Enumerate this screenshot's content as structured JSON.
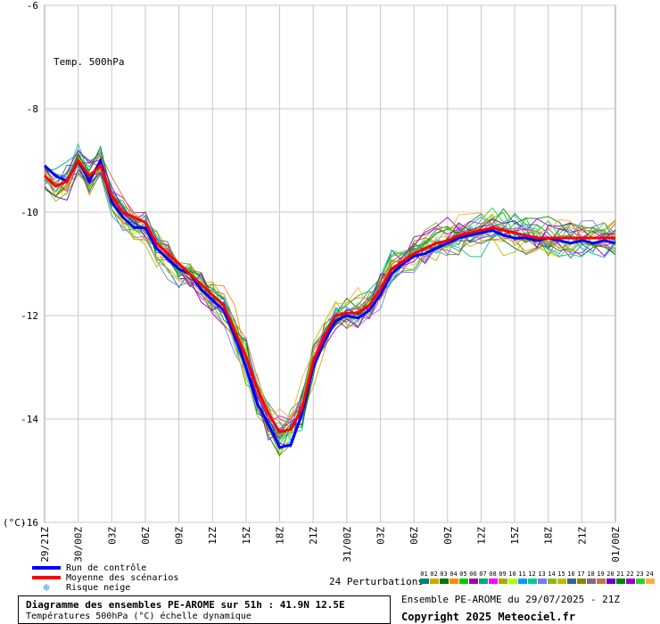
{
  "chart_data": {
    "type": "line",
    "title": "Temp. 500hPa",
    "ylabel": "(°C)",
    "ylim": [
      -16,
      -6
    ],
    "yticks": [
      -6,
      -8,
      -10,
      -12,
      -14,
      -16
    ],
    "xticks": [
      "29/21Z",
      "30/00Z",
      "03Z",
      "06Z",
      "09Z",
      "12Z",
      "15Z",
      "18Z",
      "21Z",
      "31/00Z",
      "03Z",
      "06Z",
      "09Z",
      "12Z",
      "15Z",
      "18Z",
      "21Z",
      "01/00Z"
    ],
    "x_hours": [
      0,
      51
    ],
    "grid": true,
    "series": [
      {
        "name": "Moyenne des scénarios",
        "color": "#ff0000",
        "x": [
          0,
          1,
          2,
          3,
          4,
          5,
          6,
          7,
          8,
          9,
          10,
          11,
          12,
          13,
          14,
          15,
          16,
          17,
          18,
          19,
          20,
          21,
          22,
          23,
          24,
          25,
          26,
          27,
          28,
          29,
          30,
          31,
          32,
          33,
          34,
          35,
          36,
          37,
          38,
          39,
          40,
          41,
          42,
          43,
          44,
          45,
          46,
          47,
          48,
          49,
          50,
          51
        ],
        "values": [
          -9.3,
          -9.5,
          -9.4,
          -9.0,
          -9.3,
          -9.1,
          -9.7,
          -10.0,
          -10.1,
          -10.2,
          -10.6,
          -10.8,
          -11.0,
          -11.2,
          -11.4,
          -11.6,
          -11.8,
          -12.3,
          -12.8,
          -13.4,
          -13.9,
          -14.25,
          -14.2,
          -13.8,
          -12.9,
          -12.4,
          -12.0,
          -11.95,
          -11.95,
          -11.8,
          -11.5,
          -11.1,
          -10.95,
          -10.8,
          -10.7,
          -10.6,
          -10.55,
          -10.45,
          -10.4,
          -10.35,
          -10.3,
          -10.35,
          -10.4,
          -10.45,
          -10.5,
          -10.5,
          -10.5,
          -10.5,
          -10.5,
          -10.5,
          -10.5,
          -10.5
        ]
      },
      {
        "name": "Run de contrôle",
        "color": "#0000ff",
        "x": [
          0,
          1,
          2,
          3,
          4,
          5,
          6,
          7,
          8,
          9,
          10,
          11,
          12,
          13,
          14,
          15,
          16,
          17,
          18,
          19,
          20,
          21,
          22,
          23,
          24,
          25,
          26,
          27,
          28,
          29,
          30,
          31,
          32,
          33,
          34,
          35,
          36,
          37,
          38,
          39,
          40,
          41,
          42,
          43,
          44,
          45,
          46,
          47,
          48,
          49,
          50,
          51
        ],
        "values": [
          -9.1,
          -9.3,
          -9.4,
          -9.0,
          -9.4,
          -9.0,
          -9.8,
          -10.1,
          -10.3,
          -10.3,
          -10.7,
          -10.9,
          -11.1,
          -11.2,
          -11.5,
          -11.7,
          -11.9,
          -12.4,
          -13.0,
          -13.7,
          -14.1,
          -14.55,
          -14.5,
          -13.9,
          -13.0,
          -12.5,
          -12.1,
          -12.0,
          -12.05,
          -11.9,
          -11.6,
          -11.2,
          -11.0,
          -10.85,
          -10.8,
          -10.7,
          -10.6,
          -10.5,
          -10.45,
          -10.4,
          -10.35,
          -10.45,
          -10.5,
          -10.5,
          -10.55,
          -10.5,
          -10.55,
          -10.6,
          -10.55,
          -10.6,
          -10.55,
          -10.6
        ]
      }
    ]
  },
  "legend": {
    "control_label": "Run de contrôle",
    "mean_label": "Moyenne des scénarios",
    "snow_label": "Risque neige",
    "snow_icon": "snowflake-icon"
  },
  "perturbations": {
    "label": "24 Perturbations",
    "items": [
      {
        "num": "01",
        "color": "#008080"
      },
      {
        "num": "02",
        "color": "#ccaa00"
      },
      {
        "num": "03",
        "color": "#007700"
      },
      {
        "num": "04",
        "color": "#ff8800"
      },
      {
        "num": "05",
        "color": "#00cc00"
      },
      {
        "num": "06",
        "color": "#aa00aa"
      },
      {
        "num": "07",
        "color": "#00aa77"
      },
      {
        "num": "08",
        "color": "#ff00ff"
      },
      {
        "num": "09",
        "color": "#aaaa00"
      },
      {
        "num": "10",
        "color": "#aaff00"
      },
      {
        "num": "11",
        "color": "#0099ff"
      },
      {
        "num": "12",
        "color": "#00cc88"
      },
      {
        "num": "13",
        "color": "#7777ff"
      },
      {
        "num": "14",
        "color": "#88bb22"
      },
      {
        "num": "15",
        "color": "#bbbb00"
      },
      {
        "num": "16",
        "color": "#336688"
      },
      {
        "num": "17",
        "color": "#888800"
      },
      {
        "num": "18",
        "color": "#886688"
      },
      {
        "num": "19",
        "color": "#bb7744"
      },
      {
        "num": "20",
        "color": "#6600cc"
      },
      {
        "num": "21",
        "color": "#008800"
      },
      {
        "num": "22",
        "color": "#9900cc"
      },
      {
        "num": "23",
        "color": "#33cc33"
      },
      {
        "num": "24",
        "color": "#ffaa44"
      }
    ]
  },
  "info": {
    "title": "Diagramme des ensembles PE-AROME sur 51h : 41.9N 12.5E",
    "subtitle": "Températures 500hPa (°C) échelle dynamique",
    "run": "Ensemble PE-AROME du 29/07/2025 - 21Z",
    "copyright": "Copyright 2025 Meteociel.fr"
  }
}
